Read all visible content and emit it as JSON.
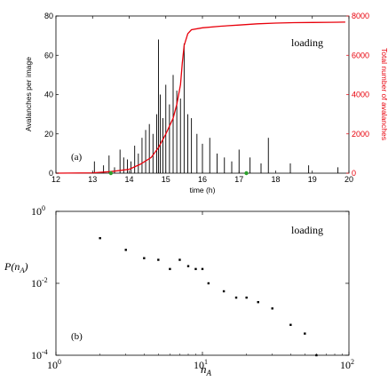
{
  "chart_data": [
    {
      "type": "bar",
      "panel_label": "(a)",
      "annotation": "loading",
      "xlabel": "time (h)",
      "ylabel": "Avalanches per image",
      "y2label": "Total number of avalanches",
      "xlim": [
        12,
        20
      ],
      "ylim": [
        0,
        80
      ],
      "y2lim": [
        0,
        8000
      ],
      "x_ticks": [
        12,
        13,
        14,
        15,
        16,
        17,
        18,
        19,
        20
      ],
      "y_ticks": [
        0,
        20,
        40,
        60,
        80
      ],
      "y2_ticks": [
        0,
        2000,
        4000,
        6000,
        8000
      ],
      "colors": {
        "bars": "#000000",
        "cumulative": "#e8000b",
        "markers": "#2ca02c"
      },
      "series": [
        {
          "type": "bar",
          "x": [
            13.05,
            13.3,
            13.45,
            13.6,
            13.75,
            13.85,
            13.95,
            14.05,
            14.15,
            14.25,
            14.35,
            14.45,
            14.55,
            14.65,
            14.75,
            14.8,
            14.85,
            14.92,
            15.0,
            15.1,
            15.2,
            15.3,
            15.4,
            15.5,
            15.6,
            15.7,
            15.85,
            16.0,
            16.2,
            16.4,
            16.6,
            16.8,
            17.0,
            17.3,
            17.6,
            17.8,
            18.4,
            18.9,
            19.7
          ],
          "values": [
            6,
            4,
            9,
            3,
            12,
            8,
            7,
            6,
            14,
            10,
            18,
            22,
            25,
            20,
            30,
            68,
            40,
            28,
            45,
            35,
            50,
            42,
            38,
            66,
            30,
            28,
            20,
            15,
            18,
            10,
            8,
            6,
            12,
            8,
            5,
            18,
            5,
            4,
            3
          ]
        },
        {
          "type": "line",
          "axis": "right",
          "x": [
            12.0,
            13.0,
            13.5,
            14.0,
            14.3,
            14.6,
            14.8,
            15.0,
            15.2,
            15.3,
            15.4,
            15.45,
            15.5,
            15.6,
            15.7,
            16.0,
            16.5,
            17.0,
            17.5,
            18.0,
            18.5,
            19.0,
            19.5,
            19.9
          ],
          "values": [
            0,
            20,
            80,
            200,
            450,
            800,
            1300,
            2000,
            2800,
            3500,
            4500,
            5600,
            6500,
            7100,
            7300,
            7400,
            7480,
            7540,
            7600,
            7640,
            7660,
            7670,
            7680,
            7690
          ]
        },
        {
          "type": "scatter",
          "x": [
            13.5,
            17.2
          ],
          "values": [
            0,
            0
          ]
        }
      ]
    },
    {
      "type": "scatter",
      "panel_label": "(b)",
      "annotation": "loading",
      "xlabel": "n",
      "xlabel_sub": "A",
      "ylabel_prefix": "P(n",
      "ylabel_sub": "A",
      "ylabel_suffix": ")",
      "x_scale": "log",
      "y_scale": "log",
      "xlim": [
        1,
        100
      ],
      "ylim": [
        0.0001,
        1
      ],
      "x_ticks": [
        {
          "base": "10",
          "exp": "0"
        },
        {
          "base": "10",
          "exp": "1"
        },
        {
          "base": "10",
          "exp": "2"
        }
      ],
      "y_ticks": [
        {
          "base": "10",
          "exp": "0"
        },
        {
          "base": "10",
          "exp": "-2"
        },
        {
          "base": "10",
          "exp": "-4"
        }
      ],
      "series": [
        {
          "x": [
            2,
            3,
            4,
            5,
            6,
            7,
            8,
            9,
            10,
            11,
            14,
            17,
            20,
            24,
            30,
            40,
            50,
            60
          ],
          "values": [
            0.18,
            0.085,
            0.05,
            0.045,
            0.025,
            0.045,
            0.03,
            0.025,
            0.025,
            0.01,
            0.006,
            0.004,
            0.004,
            0.003,
            0.002,
            0.0007,
            0.0004,
            0.0001
          ]
        }
      ]
    }
  ]
}
